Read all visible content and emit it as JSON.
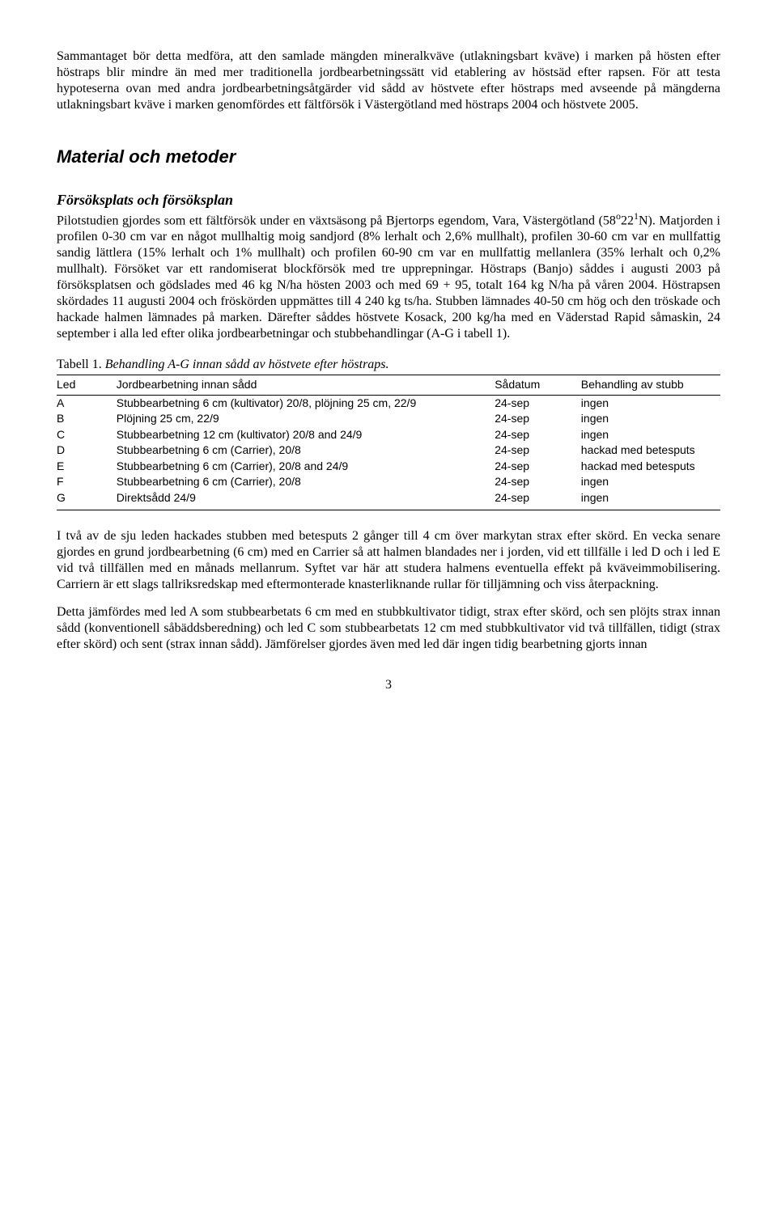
{
  "intro_para": "Sammantaget bör detta medföra, att den samlade mängden mineralkväve (utlakningsbart kväve) i marken på hösten efter höstraps blir mindre än med mer traditionella jordbearbetningssätt vid etablering av höstsäd efter rapsen. För att testa hypoteserna ovan med andra jordbearbetningsåtgärder vid sådd av höstvete efter höstraps med avseende på mängderna utlakningsbart kväve i marken genomfördes ett fältförsök i Västergötland med höstraps 2004 och höstvete 2005.",
  "section_heading": "Material och metoder",
  "subsection_heading": "Försöksplats och försöksplan",
  "methods_para_html": "Pilotstudien gjordes som ett fältförsök under en växtsäsong på Bjertorps egendom, Vara, Västergötland (58<sup>o</sup>22<sup>1</sup>N). Matjorden i profilen 0-30 cm var en något mullhaltig moig sandjord (8% lerhalt och 2,6% mullhalt), profilen 30-60 cm var en mullfattig sandig lättlera (15% lerhalt och 1% mullhalt) och profilen 60-90 cm var en mullfattig mellanlera (35% lerhalt och 0,2% mullhalt). Försöket var ett randomiserat blockförsök med tre upprepningar. Höstraps (Banjo) såddes i augusti 2003 på försöksplatsen och gödslades med 46 kg N/ha hösten 2003 och med 69 + 95, totalt 164 kg N/ha på våren 2004. Höstrapsen skördades 11 augusti 2004 och fröskörden uppmättes till 4 240 kg ts/ha. Stubben lämnades 40-50 cm hög och den tröskade och hackade halmen lämnades på marken. Därefter såddes höstvete Kosack, 200 kg/ha med en Väderstad Rapid såmaskin, 24 september i alla led efter olika jordbearbetningar och stubbehandlingar (A-G i tabell 1).",
  "table_caption_prefix": "Tabell 1. ",
  "table_caption_italic": "Behandling A-G innan sådd av höstvete efter höstraps.",
  "table": {
    "headers": {
      "led": "Led",
      "desc": "Jordbearbetning innan sådd",
      "date": "Sådatum",
      "treat": "Behandling av stubb"
    },
    "rows": [
      {
        "led": "A",
        "desc": "Stubbearbetning 6 cm (kultivator) 20/8, plöjning 25 cm, 22/9",
        "date": "24-sep",
        "treat": "ingen"
      },
      {
        "led": "B",
        "desc": "Plöjning 25 cm, 22/9",
        "date": "24-sep",
        "treat": "ingen"
      },
      {
        "led": "C",
        "desc": "Stubbearbetning 12 cm (kultivator) 20/8 and 24/9",
        "date": "24-sep",
        "treat": "ingen"
      },
      {
        "led": "D",
        "desc": "Stubbearbetning 6 cm (Carrier), 20/8",
        "date": "24-sep",
        "treat": "hackad med betesputs"
      },
      {
        "led": "E",
        "desc": "Stubbearbetning 6 cm (Carrier), 20/8 and 24/9",
        "date": "24-sep",
        "treat": "hackad med betesputs"
      },
      {
        "led": "F",
        "desc": "Stubbearbetning 6 cm (Carrier), 20/8",
        "date": "24-sep",
        "treat": "ingen"
      },
      {
        "led": "G",
        "desc": "Direktsådd 24/9",
        "date": "24-sep",
        "treat": "ingen"
      }
    ]
  },
  "para_after_table_1": "I två av de sju leden hackades stubben med betesputs 2 gånger till 4 cm över markytan strax efter skörd. En vecka senare gjordes en grund jordbearbetning (6 cm) med en Carrier så att halmen blandades ner i jorden, vid ett tillfälle i led D och i led E vid två tillfällen med en månads mellanrum. Syftet var här att studera halmens eventuella effekt på kväveimmobilisering. Carriern är ett slags tallriksredskap med eftermonterade knasterliknande rullar för tilljämning och viss återpackning.",
  "para_after_table_2": "Detta jämfördes med led A som stubbearbetats 6 cm med en stubbkultivator tidigt, strax efter skörd, och sen plöjts strax innan sådd (konventionell såbäddsberedning) och led C som stubbearbetats 12 cm med stubbkultivator vid två tillfällen, tidigt (strax efter skörd) och sent (strax innan sådd). Jämförelser gjordes även med led där ingen tidig bearbetning gjorts innan",
  "page_number": "3"
}
